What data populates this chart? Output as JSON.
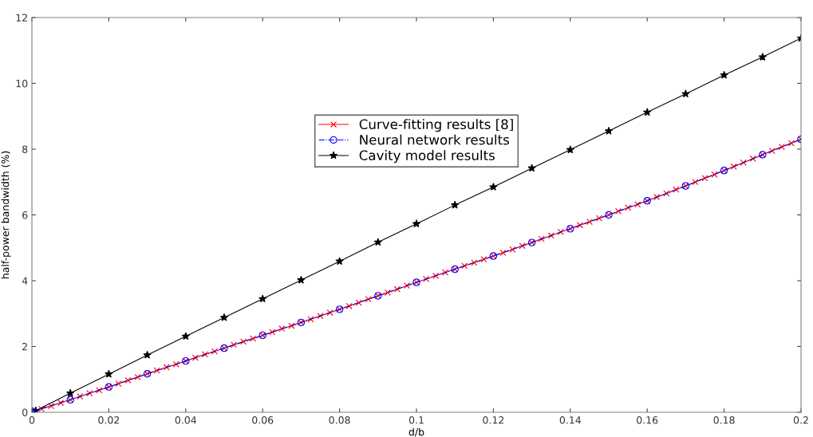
{
  "chart_data": {
    "type": "line",
    "xlabel": "d/b",
    "ylabel": "half-power bandwidth (%)",
    "xlim": [
      0,
      0.2
    ],
    "ylim": [
      0,
      12
    ],
    "xticks": [
      0,
      0.02,
      0.04,
      0.06,
      0.08,
      0.1,
      0.12,
      0.14,
      0.16,
      0.18,
      0.2
    ],
    "yticks": [
      0,
      2,
      4,
      6,
      8,
      10,
      12
    ],
    "grid": false,
    "legend": "top",
    "series": [
      {
        "name": "Curve-fitting results [8]",
        "color": "#ff0000",
        "marker": "cross",
        "line_style": "solid",
        "x": [
          0.0025,
          0.005,
          0.0075,
          0.01,
          0.0125,
          0.015,
          0.0175,
          0.02,
          0.0225,
          0.025,
          0.0275,
          0.03,
          0.0325,
          0.035,
          0.0375,
          0.04,
          0.0425,
          0.045,
          0.0475,
          0.05,
          0.0525,
          0.055,
          0.0575,
          0.06,
          0.0625,
          0.065,
          0.0675,
          0.07,
          0.0725,
          0.075,
          0.0775,
          0.08,
          0.0825,
          0.085,
          0.0875,
          0.09,
          0.0925,
          0.095,
          0.0975,
          0.1,
          0.1025,
          0.105,
          0.1075,
          0.11,
          0.1125,
          0.115,
          0.1175,
          0.12,
          0.1225,
          0.125,
          0.1275,
          0.13,
          0.1325,
          0.135,
          0.1375,
          0.14,
          0.1425,
          0.145,
          0.1475,
          0.15,
          0.1525,
          0.155,
          0.1575,
          0.16,
          0.1625,
          0.165,
          0.1675,
          0.17,
          0.1725,
          0.175,
          0.1775,
          0.18,
          0.1825,
          0.185,
          0.1875,
          0.19,
          0.1925,
          0.195,
          0.1975,
          0.2
        ],
        "values": [
          0.1,
          0.19,
          0.29,
          0.38,
          0.48,
          0.58,
          0.67,
          0.77,
          0.87,
          0.97,
          1.07,
          1.17,
          1.27,
          1.37,
          1.46,
          1.56,
          1.66,
          1.76,
          1.85,
          1.95,
          2.05,
          2.15,
          2.24,
          2.34,
          2.44,
          2.54,
          2.63,
          2.73,
          2.83,
          2.93,
          3.03,
          3.13,
          3.23,
          3.33,
          3.44,
          3.54,
          3.64,
          3.74,
          3.85,
          3.95,
          4.05,
          4.15,
          4.25,
          4.35,
          4.45,
          4.55,
          4.65,
          4.75,
          4.85,
          4.95,
          5.06,
          5.16,
          5.27,
          5.37,
          5.48,
          5.58,
          5.69,
          5.79,
          5.9,
          6.0,
          6.11,
          6.22,
          6.32,
          6.43,
          6.54,
          6.65,
          6.77,
          6.88,
          7.0,
          7.12,
          7.23,
          7.35,
          7.47,
          7.59,
          7.71,
          7.83,
          7.95,
          8.07,
          8.18,
          8.3
        ]
      },
      {
        "name": "Neural network results",
        "color": "#0000ff",
        "marker": "circle",
        "line_style": "dashdot",
        "x": [
          0,
          0.01,
          0.02,
          0.03,
          0.04,
          0.05,
          0.06,
          0.07,
          0.08,
          0.09,
          0.1,
          0.11,
          0.12,
          0.13,
          0.14,
          0.15,
          0.16,
          0.17,
          0.18,
          0.19,
          0.2
        ],
        "values": [
          0.03,
          0.38,
          0.77,
          1.17,
          1.56,
          1.95,
          2.34,
          2.73,
          3.13,
          3.54,
          3.95,
          4.35,
          4.75,
          5.16,
          5.58,
          6.0,
          6.43,
          6.88,
          7.35,
          7.83,
          8.3
        ]
      },
      {
        "name": "Cavity model results",
        "color": "#000000",
        "marker": "star",
        "line_style": "solid",
        "x": [
          0.001,
          0.01,
          0.02,
          0.03,
          0.04,
          0.05,
          0.06,
          0.07,
          0.08,
          0.09,
          0.1,
          0.11,
          0.12,
          0.13,
          0.14,
          0.15,
          0.16,
          0.17,
          0.18,
          0.19,
          0.2
        ],
        "values": [
          0.05,
          0.58,
          1.16,
          1.74,
          2.31,
          2.88,
          3.45,
          4.02,
          4.59,
          5.17,
          5.73,
          6.3,
          6.85,
          7.42,
          7.98,
          8.55,
          9.12,
          9.68,
          10.25,
          10.8,
          11.37
        ]
      }
    ]
  }
}
